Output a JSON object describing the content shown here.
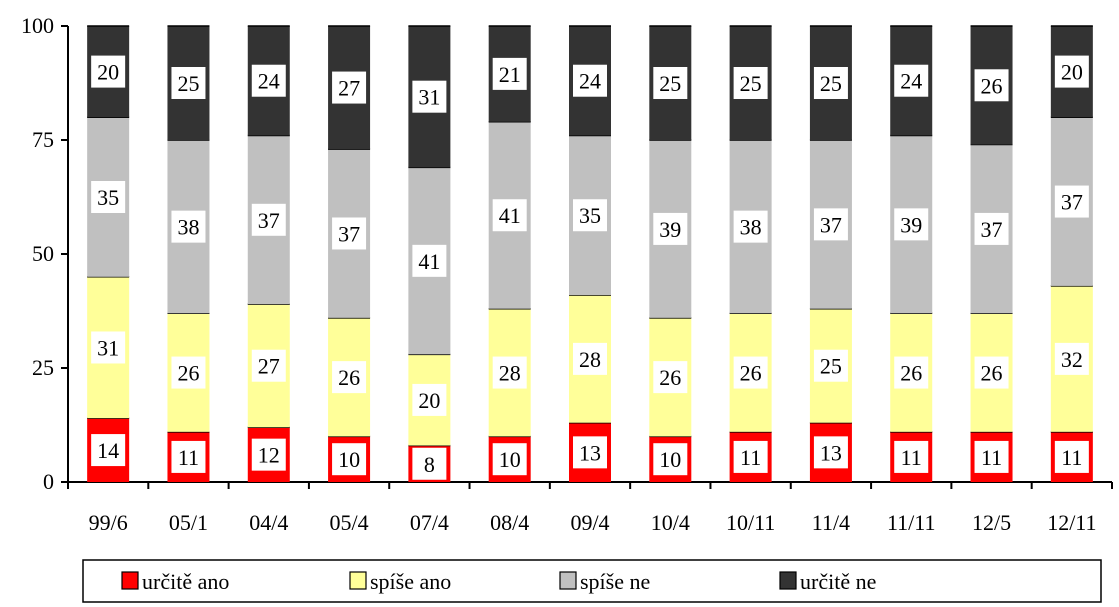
{
  "chart_data": {
    "type": "bar",
    "stacked": true,
    "categories": [
      "99/6",
      "05/1",
      "04/4",
      "05/4",
      "07/4",
      "08/4",
      "09/4",
      "10/4",
      "10/11",
      "11/4",
      "11/11",
      "12/5",
      "12/11"
    ],
    "series": [
      {
        "name": "určitě ano",
        "color": "#ff0000",
        "values": [
          14,
          11,
          12,
          10,
          8,
          10,
          13,
          10,
          11,
          13,
          11,
          11,
          11
        ]
      },
      {
        "name": "spíše ano",
        "color": "#ffff99",
        "values": [
          31,
          26,
          27,
          26,
          20,
          28,
          28,
          26,
          26,
          25,
          26,
          26,
          32
        ]
      },
      {
        "name": "spíše ne",
        "color": "#c0c0c0",
        "values": [
          35,
          38,
          37,
          37,
          41,
          41,
          35,
          39,
          38,
          37,
          39,
          37,
          37
        ]
      },
      {
        "name": "určitě ne",
        "color": "#333333",
        "values": [
          20,
          25,
          24,
          27,
          31,
          21,
          24,
          25,
          25,
          25,
          24,
          26,
          20
        ]
      }
    ],
    "ylim": [
      0,
      100
    ],
    "yticks": [
      "0",
      "25",
      "50",
      "75",
      "100"
    ],
    "grid": false,
    "legend": "bottom"
  }
}
